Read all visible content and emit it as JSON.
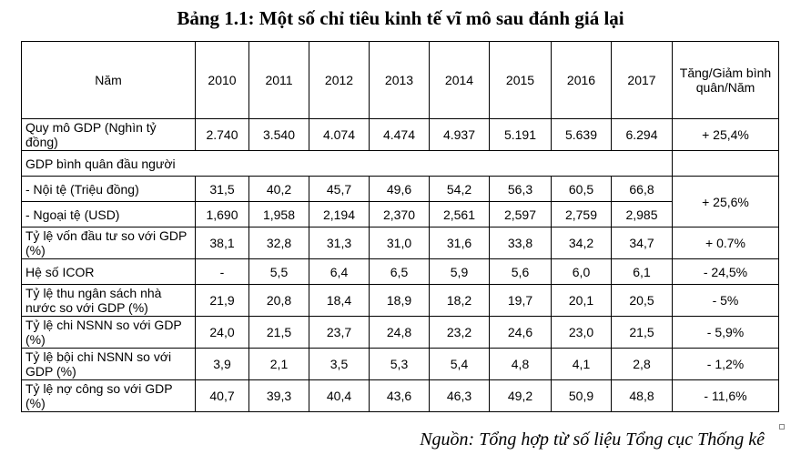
{
  "title": "Bảng 1.1: Một số chỉ tiêu kinh tế vĩ mô sau đánh giá lại",
  "header": {
    "label": "Năm",
    "years": [
      "2010",
      "2011",
      "2012",
      "2013",
      "2014",
      "2015",
      "2016",
      "2017"
    ],
    "change": "Tăng/Giảm bình quân/Năm"
  },
  "rows": {
    "gdp_size": {
      "label": "Quy mô GDP (Nghìn tỷ đồng)",
      "values": [
        "2.740",
        "3.540",
        "4.074",
        "4.474",
        "4.937",
        "5.191",
        "5.639",
        "6.294"
      ],
      "change": "+ 25,4%"
    },
    "gdp_pc": {
      "label": "GDP bình quân đầu người"
    },
    "gdp_pc_local": {
      "label": "- Nội tệ (Triệu đồng)",
      "values": [
        "31,5",
        "40,2",
        "45,7",
        "49,6",
        "54,2",
        "56,3",
        "60,5",
        "66,8"
      ]
    },
    "gdp_pc_change": "+ 25,6%",
    "gdp_pc_usd": {
      "label": "- Ngoại tệ (USD)",
      "values": [
        "1,690",
        "1,958",
        "2,194",
        "2,370",
        "2,561",
        "2,597",
        "2,759",
        "2,985"
      ]
    },
    "investment": {
      "label": "Tỷ lệ vốn đầu tư so với GDP (%)",
      "values": [
        "38,1",
        "32,8",
        "31,3",
        "31,0",
        "31,6",
        "33,8",
        "34,2",
        "34,7"
      ],
      "change": "+ 0.7%"
    },
    "icor": {
      "label": "Hệ số ICOR",
      "values": [
        "-",
        "5,5",
        "6,4",
        "6,5",
        "5,9",
        "5,6",
        "6,0",
        "6,1"
      ],
      "change": "- 24,5%"
    },
    "revenue": {
      "label": "Tỷ lệ thu ngân sách nhà nước so với GDP (%)",
      "values": [
        "21,9",
        "20,8",
        "18,4",
        "18,9",
        "18,2",
        "19,7",
        "20,1",
        "20,5"
      ],
      "change": "- 5%"
    },
    "spending": {
      "label": "Tỷ lệ chi NSNN so với GDP (%)",
      "values": [
        "24,0",
        "21,5",
        "23,7",
        "24,8",
        "23,2",
        "24,6",
        "23,0",
        "21,5"
      ],
      "change": "- 5,9%"
    },
    "deficit": {
      "label": "Tỷ lệ bội chi NSNN so với GDP (%)",
      "values": [
        "3,9",
        "2,1",
        "3,5",
        "5,3",
        "5,4",
        "4,8",
        "4,1",
        "2,8"
      ],
      "change": "- 1,2%"
    },
    "debt": {
      "label": "Tỷ lệ nợ công so với GDP (%)",
      "values": [
        "40,7",
        "39,3",
        "40,4",
        "43,6",
        "46,3",
        "49,2",
        "50,9",
        "48,8"
      ],
      "change": "- 11,6%"
    }
  },
  "source": "Nguồn: Tổng hợp từ số liệu Tổng cục Thống kê"
}
